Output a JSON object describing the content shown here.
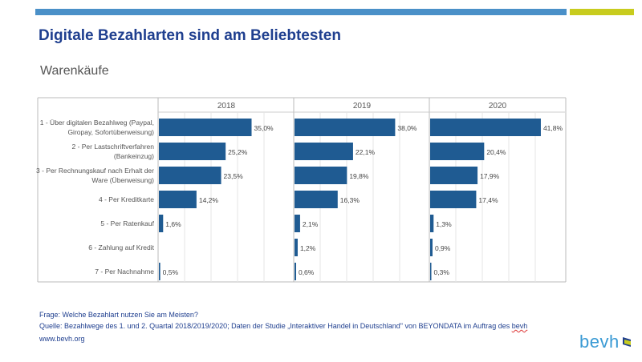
{
  "colors": {
    "accent_blue": "#4a90c8",
    "accent_green": "#c8cc1e",
    "bar": "#1f5b92",
    "title": "#1f3f8f"
  },
  "header": {
    "title": "Digitale Bezahlarten sind am Beliebtesten",
    "subtitle": "Warenkäufe"
  },
  "chart_data": {
    "type": "bar",
    "orientation": "horizontal",
    "panels": [
      "2018",
      "2019",
      "2020"
    ],
    "categories": [
      "1 - Über digitalen Bezahlweg (Paypal, Giropay, Sofortüberweisung)",
      "2 - Per Lastschriftverfahren (Bankeinzug)",
      "3 - Per Rechnungskauf nach Erhalt der Ware (Überweisung)",
      "4 - Per Kreditkarte",
      "5 - Per Ratenkauf",
      "6 - Zahlung auf Kredit",
      "7 - Per Nachnahme"
    ],
    "category_lines": [
      [
        "1 - Über digitalen Bezahlweg (Paypal,",
        "Giropay, Sofortüberweisung)"
      ],
      [
        "2 - Per Lastschriftverfahren",
        "(Bankeinzug)"
      ],
      [
        "3 - Per Rechnungskauf nach Erhalt der",
        "Ware (Überweisung)"
      ],
      [
        "4 - Per Kreditkarte"
      ],
      [
        "5 - Per Ratenkauf"
      ],
      [
        "6 - Zahlung auf Kredit"
      ],
      [
        "7 - Per Nachnahme"
      ]
    ],
    "series": [
      {
        "name": "2018",
        "values": [
          35.0,
          25.2,
          23.5,
          14.2,
          1.6,
          null,
          0.5
        ],
        "labels": [
          "35,0%",
          "25,2%",
          "23,5%",
          "14,2%",
          "1,6%",
          "",
          "0,5%"
        ]
      },
      {
        "name": "2019",
        "values": [
          38.0,
          22.1,
          19.8,
          16.3,
          2.1,
          1.2,
          0.6
        ],
        "labels": [
          "38,0%",
          "22,1%",
          "19,8%",
          "16,3%",
          "2,1%",
          "1,2%",
          "0,6%"
        ]
      },
      {
        "name": "2020",
        "values": [
          41.8,
          20.4,
          17.9,
          17.4,
          1.3,
          0.9,
          0.3
        ],
        "labels": [
          "41,8%",
          "20,4%",
          "17,9%",
          "17,4%",
          "1,3%",
          "0,9%",
          "0,3%"
        ]
      }
    ],
    "xlim": [
      0,
      50
    ],
    "grid": true
  },
  "footer": {
    "question": "Frage: Welche Bezahlart nutzen Sie am Meisten?",
    "source_prefix": "Quelle: Bezahlwege des 1. und 2. Quartal 2018/2019/2020; Daten der Studie „Interaktiver Handel in Deutschland\" von BEYONDATA im Auftrag des ",
    "source_org": "bevh",
    "website": "www.bevh.org",
    "logo_text": "bevh"
  }
}
